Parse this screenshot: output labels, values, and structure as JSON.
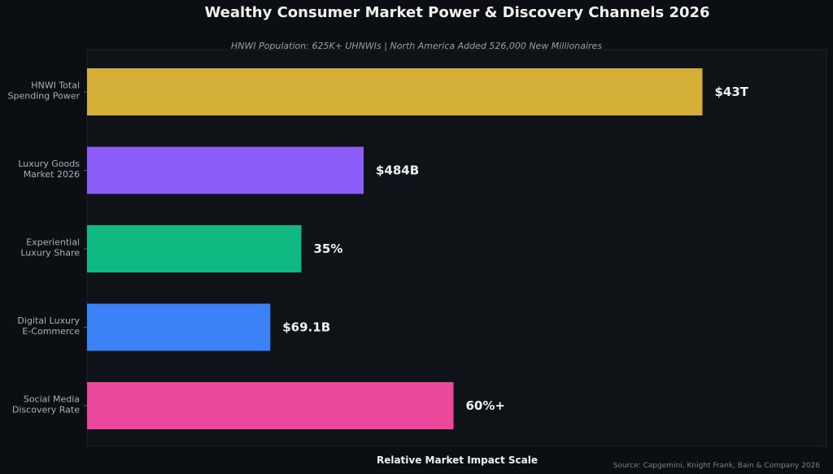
{
  "chart_data": {
    "type": "bar",
    "orientation": "horizontal",
    "title": "Wealthy Consumer Market Power & Discovery Channels 2026",
    "subtitle": "HNWI Population: 625K+ UHNWIs | North America Added 526,000 New Millionaires",
    "xlabel": "Relative Market Impact Scale",
    "ylabel": "",
    "source": "Source: Capgemini, Knight Frank, Bain & Company 2026",
    "xlim": [
      0,
      100
    ],
    "grid": false,
    "categories": [
      [
        "HNWI Total",
        "Spending Power"
      ],
      [
        "Luxury Goods",
        "Market 2026"
      ],
      [
        "Experiential",
        "Luxury Share"
      ],
      [
        "Digital Luxury",
        "E-Commerce"
      ],
      [
        "Social Media",
        "Discovery Rate"
      ]
    ],
    "values": [
      89,
      40,
      31,
      26.5,
      53
    ],
    "value_labels": [
      "$43T",
      "$484B",
      "35%",
      "$69.1B",
      "60%+"
    ],
    "colors": [
      "#d4af37",
      "#8b5cf6",
      "#10b981",
      "#3b82f6",
      "#ec4899"
    ],
    "background": "#0b0e13",
    "plot_background": "#0f1318"
  }
}
